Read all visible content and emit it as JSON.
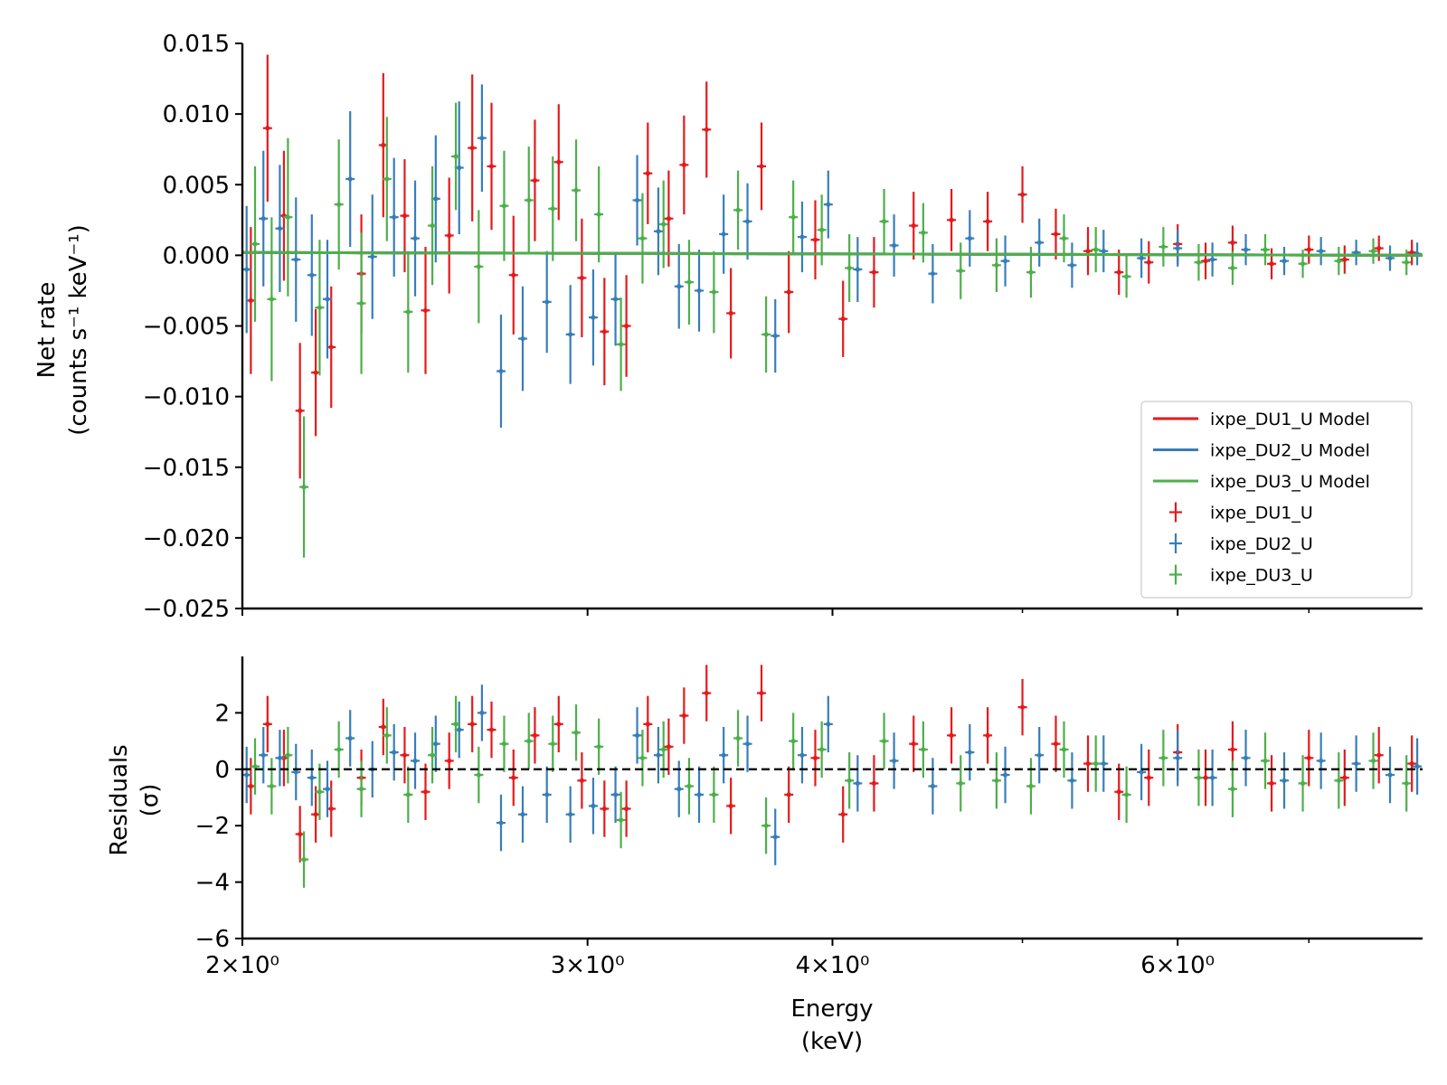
{
  "colors": {
    "du1": "#e41a1c",
    "du2": "#377eb8",
    "du3": "#4daf4a",
    "axis": "#000000"
  },
  "chart_data": [
    {
      "type": "scatter",
      "panel": "top",
      "title": "",
      "xlabel": "",
      "ylabel_line1": "Net rate",
      "ylabel_line2": "(counts s⁻¹ keV⁻¹)",
      "xscale": "log",
      "xlim": [
        2.0,
        8.0
      ],
      "ylim": [
        -0.025,
        0.015
      ],
      "yticks": [
        -0.025,
        -0.02,
        -0.015,
        -0.01,
        -0.005,
        0.0,
        0.005,
        0.01,
        0.015
      ],
      "ytick_labels": [
        "−0.025",
        "−0.020",
        "−0.015",
        "−0.010",
        "−0.005",
        "0.000",
        "0.005",
        "0.010",
        "0.015"
      ],
      "legend": {
        "position": "lower-right",
        "entries": [
          {
            "label": "ixpe_DU1_U Model",
            "style": "line",
            "color_key": "du1"
          },
          {
            "label": "ixpe_DU2_U Model",
            "style": "line",
            "color_key": "du2"
          },
          {
            "label": "ixpe_DU3_U Model",
            "style": "line",
            "color_key": "du3"
          },
          {
            "label": "ixpe_DU1_U",
            "style": "errorbar",
            "color_key": "du1"
          },
          {
            "label": "ixpe_DU2_U",
            "style": "errorbar",
            "color_key": "du2"
          },
          {
            "label": "ixpe_DU3_U",
            "style": "errorbar",
            "color_key": "du3"
          }
        ]
      },
      "models": [
        {
          "name": "ixpe_DU1_U Model",
          "color_key": "du1",
          "x": [
            2.0,
            4.0,
            8.0
          ],
          "y": [
            0.0002,
            0.0001,
            0.0
          ]
        },
        {
          "name": "ixpe_DU2_U Model",
          "color_key": "du2",
          "x": [
            2.0,
            4.0,
            8.0
          ],
          "y": [
            0.0002,
            0.0001,
            0.0
          ]
        },
        {
          "name": "ixpe_DU3_U Model",
          "color_key": "du3",
          "x": [
            2.0,
            4.0,
            8.0
          ],
          "y": [
            0.0002,
            0.0001,
            0.0
          ]
        }
      ],
      "series": [
        {
          "name": "ixpe_DU1_U",
          "color_key": "du1",
          "x": [
            2.02,
            2.06,
            2.1,
            2.14,
            2.18,
            2.22,
            2.3,
            2.36,
            2.42,
            2.48,
            2.55,
            2.62,
            2.68,
            2.75,
            2.82,
            2.9,
            2.98,
            3.06,
            3.14,
            3.22,
            3.3,
            3.36,
            3.45,
            3.55,
            3.68,
            3.8,
            3.92,
            4.05,
            4.2,
            4.4,
            4.6,
            4.8,
            5.0,
            5.2,
            5.4,
            5.6,
            5.8,
            6.0,
            6.2,
            6.4,
            6.7,
            7.0,
            7.3,
            7.6,
            7.9
          ],
          "y": [
            -0.0032,
            0.009,
            0.0028,
            -0.011,
            -0.0083,
            -0.0065,
            -0.0013,
            0.0078,
            0.0028,
            -0.0039,
            0.0014,
            0.0076,
            0.0063,
            -0.0014,
            0.0053,
            0.0066,
            -0.0016,
            -0.0054,
            -0.005,
            0.0058,
            0.0026,
            0.0064,
            0.0089,
            -0.0041,
            0.0063,
            -0.0026,
            0.0011,
            -0.0045,
            -0.0012,
            0.0021,
            0.0025,
            0.0024,
            0.0043,
            0.0015,
            0.0003,
            -0.0012,
            -0.0005,
            0.0008,
            -0.0004,
            0.0009,
            -0.0006,
            0.0004,
            -0.0003,
            0.0005,
            0.0002
          ],
          "err": [
            0.0052,
            0.0052,
            0.0046,
            0.0048,
            0.0045,
            0.0043,
            0.0042,
            0.0051,
            0.004,
            0.0045,
            0.0041,
            0.0052,
            0.0045,
            0.0042,
            0.0043,
            0.0041,
            0.0042,
            0.0038,
            0.0036,
            0.0036,
            0.0034,
            0.0035,
            0.0034,
            0.0032,
            0.0031,
            0.0029,
            0.0028,
            0.0027,
            0.0025,
            0.0024,
            0.0022,
            0.0021,
            0.002,
            0.0018,
            0.0017,
            0.0016,
            0.0015,
            0.0014,
            0.0013,
            0.0012,
            0.0011,
            0.001,
            0.001,
            0.0009,
            0.0009
          ]
        },
        {
          "name": "ixpe_DU2_U",
          "color_key": "du2",
          "x": [
            2.01,
            2.05,
            2.09,
            2.13,
            2.17,
            2.21,
            2.27,
            2.33,
            2.39,
            2.45,
            2.51,
            2.58,
            2.65,
            2.71,
            2.78,
            2.86,
            2.94,
            3.02,
            3.1,
            3.18,
            3.26,
            3.34,
            3.42,
            3.52,
            3.62,
            3.74,
            3.86,
            3.98,
            4.12,
            4.3,
            4.5,
            4.7,
            4.9,
            5.1,
            5.3,
            5.5,
            5.75,
            6.0,
            6.25,
            6.5,
            6.8,
            7.1,
            7.4,
            7.7,
            7.95
          ],
          "y": [
            -0.001,
            0.0026,
            0.0019,
            -0.0003,
            -0.0014,
            -0.0031,
            0.0054,
            -0.0001,
            0.0027,
            0.0012,
            0.004,
            0.0062,
            0.0083,
            -0.0082,
            -0.0059,
            -0.0033,
            -0.0056,
            -0.0044,
            -0.0031,
            0.0039,
            0.0017,
            -0.0022,
            -0.0025,
            0.0015,
            0.0024,
            -0.0057,
            0.0013,
            0.0036,
            -0.001,
            0.0007,
            -0.0013,
            0.0012,
            -0.0004,
            0.0009,
            -0.0007,
            0.0003,
            -0.0002,
            0.0005,
            -0.0003,
            0.0004,
            -0.0004,
            0.0003,
            0.0002,
            -0.0002,
            0.0001
          ],
          "err": [
            0.0045,
            0.0048,
            0.0045,
            0.0044,
            0.0043,
            0.0042,
            0.0048,
            0.0044,
            0.0042,
            0.0041,
            0.0045,
            0.0047,
            0.0038,
            0.004,
            0.0037,
            0.0036,
            0.0035,
            0.0034,
            0.0033,
            0.0032,
            0.0031,
            0.003,
            0.0029,
            0.0028,
            0.0027,
            0.0026,
            0.0025,
            0.0024,
            0.0023,
            0.0022,
            0.0021,
            0.002,
            0.0018,
            0.0017,
            0.0016,
            0.0015,
            0.0014,
            0.0013,
            0.0012,
            0.0011,
            0.001,
            0.001,
            0.0009,
            0.0009,
            0.0008
          ]
        },
        {
          "name": "ixpe_DU3_U",
          "color_key": "du3",
          "x": [
            2.03,
            2.07,
            2.11,
            2.15,
            2.19,
            2.24,
            2.3,
            2.37,
            2.43,
            2.5,
            2.57,
            2.64,
            2.72,
            2.8,
            2.88,
            2.96,
            3.04,
            3.12,
            3.2,
            3.28,
            3.38,
            3.48,
            3.58,
            3.7,
            3.82,
            3.95,
            4.08,
            4.25,
            4.45,
            4.65,
            4.85,
            5.05,
            5.25,
            5.45,
            5.65,
            5.9,
            6.15,
            6.4,
            6.65,
            6.95,
            7.25,
            7.55,
            7.85
          ],
          "y": [
            0.0008,
            -0.0031,
            0.0027,
            -0.0164,
            -0.0037,
            0.0036,
            -0.0034,
            0.0054,
            -0.004,
            0.0021,
            0.007,
            -0.0008,
            0.0035,
            0.0039,
            0.0033,
            0.0046,
            0.0029,
            -0.0063,
            0.0012,
            0.0022,
            -0.0019,
            -0.0026,
            0.0032,
            -0.0056,
            0.0027,
            0.0018,
            -0.0009,
            0.0024,
            0.0016,
            -0.0011,
            -0.0007,
            -0.0012,
            0.0012,
            0.0004,
            -0.0015,
            0.0006,
            -0.0005,
            -0.0009,
            0.0004,
            -0.0006,
            -0.0004,
            0.0003,
            -0.0005
          ],
          "err": [
            0.0055,
            0.0058,
            0.0056,
            0.005,
            0.0048,
            0.0046,
            0.005,
            0.0044,
            0.0043,
            0.0042,
            0.0038,
            0.004,
            0.0039,
            0.0038,
            0.0037,
            0.0036,
            0.0034,
            0.0033,
            0.0032,
            0.0031,
            0.003,
            0.0029,
            0.0028,
            0.0027,
            0.0026,
            0.0025,
            0.0024,
            0.0023,
            0.0021,
            0.002,
            0.0019,
            0.0018,
            0.0017,
            0.0016,
            0.0015,
            0.0014,
            0.0013,
            0.0012,
            0.0011,
            0.001,
            0.001,
            0.0009,
            0.0009
          ]
        }
      ]
    },
    {
      "type": "scatter",
      "panel": "bottom",
      "title": "",
      "xlabel_line1": "Energy",
      "xlabel_line2": "(keV)",
      "ylabel_line1": "Residuals",
      "ylabel_line2": "(σ)",
      "xscale": "log",
      "xlim": [
        2.0,
        8.0
      ],
      "xticks": [
        2,
        3,
        4,
        6
      ],
      "xtick_labels": [
        "2×10⁰",
        "3×10⁰",
        "4×10⁰",
        "6×10⁰"
      ],
      "xminor_ticks": [
        5,
        7
      ],
      "ylim": [
        -6,
        4
      ],
      "yticks": [
        -6,
        -4,
        -2,
        0,
        2
      ],
      "ytick_labels": [
        "−6",
        "−4",
        "−2",
        "0",
        "2"
      ],
      "zero_line": {
        "y": 0,
        "style": "dashed",
        "color_key": "axis"
      },
      "series": [
        {
          "name": "ixpe_DU1_U",
          "color_key": "du1",
          "x": [
            2.02,
            2.06,
            2.1,
            2.14,
            2.18,
            2.22,
            2.3,
            2.36,
            2.42,
            2.48,
            2.55,
            2.62,
            2.68,
            2.75,
            2.82,
            2.9,
            2.98,
            3.06,
            3.14,
            3.22,
            3.3,
            3.36,
            3.45,
            3.55,
            3.68,
            3.8,
            3.92,
            4.05,
            4.2,
            4.4,
            4.6,
            4.8,
            5.0,
            5.2,
            5.4,
            5.6,
            5.8,
            6.0,
            6.2,
            6.4,
            6.7,
            7.0,
            7.3,
            7.6,
            7.9
          ],
          "y": [
            -0.6,
            1.6,
            0.4,
            -2.3,
            -1.6,
            -1.4,
            -0.3,
            1.5,
            0.5,
            -0.8,
            0.3,
            1.6,
            1.4,
            -0.3,
            1.2,
            1.6,
            -0.4,
            -1.4,
            -1.4,
            1.6,
            0.8,
            1.9,
            2.7,
            -1.3,
            2.7,
            -0.9,
            0.4,
            -1.6,
            -0.5,
            0.9,
            1.2,
            1.2,
            2.2,
            0.9,
            0.2,
            -0.8,
            -0.3,
            0.6,
            -0.3,
            0.7,
            -0.5,
            0.4,
            -0.3,
            0.5,
            0.2
          ],
          "err": [
            1,
            1,
            1,
            1,
            1,
            1,
            1,
            1,
            1,
            1,
            1,
            1,
            1,
            1,
            1,
            1,
            1,
            1,
            1,
            1,
            1,
            1,
            1,
            1,
            1,
            1,
            1,
            1,
            1,
            1,
            1,
            1,
            1,
            1,
            1,
            1,
            1,
            1,
            1,
            1,
            1,
            1,
            1,
            1,
            1
          ]
        },
        {
          "name": "ixpe_DU2_U",
          "color_key": "du2",
          "x": [
            2.01,
            2.05,
            2.09,
            2.13,
            2.17,
            2.21,
            2.27,
            2.33,
            2.39,
            2.45,
            2.51,
            2.58,
            2.65,
            2.71,
            2.78,
            2.86,
            2.94,
            3.02,
            3.1,
            3.18,
            3.26,
            3.34,
            3.42,
            3.52,
            3.62,
            3.74,
            3.86,
            3.98,
            4.12,
            4.3,
            4.5,
            4.7,
            4.9,
            5.1,
            5.3,
            5.5,
            5.75,
            6.0,
            6.25,
            6.5,
            6.8,
            7.1,
            7.4,
            7.7,
            7.95
          ],
          "y": [
            -0.2,
            0.5,
            0.4,
            -0.1,
            -0.3,
            -0.7,
            1.1,
            0.0,
            0.6,
            0.3,
            0.9,
            1.4,
            2.0,
            -1.9,
            -1.6,
            -0.9,
            -1.6,
            -1.3,
            -0.9,
            1.2,
            0.5,
            -0.7,
            -0.9,
            0.5,
            0.9,
            -2.4,
            0.5,
            1.6,
            -0.5,
            0.3,
            -0.6,
            0.6,
            -0.2,
            0.5,
            -0.4,
            0.2,
            -0.1,
            0.4,
            -0.3,
            0.4,
            -0.4,
            0.3,
            0.2,
            -0.2,
            0.1
          ],
          "err": [
            1,
            1,
            1,
            1,
            1,
            1,
            1,
            1,
            1,
            1,
            1,
            1,
            1,
            1,
            1,
            1,
            1,
            1,
            1,
            1,
            1,
            1,
            1,
            1,
            1,
            1,
            1,
            1,
            1,
            1,
            1,
            1,
            1,
            1,
            1,
            1,
            1,
            1,
            1,
            1,
            1,
            1,
            1,
            1,
            1
          ]
        },
        {
          "name": "ixpe_DU3_U",
          "color_key": "du3",
          "x": [
            2.03,
            2.07,
            2.11,
            2.15,
            2.19,
            2.24,
            2.3,
            2.37,
            2.43,
            2.5,
            2.57,
            2.64,
            2.72,
            2.8,
            2.88,
            2.96,
            3.04,
            3.12,
            3.2,
            3.28,
            3.38,
            3.48,
            3.58,
            3.7,
            3.82,
            3.95,
            4.08,
            4.25,
            4.45,
            4.65,
            4.85,
            5.05,
            5.25,
            5.45,
            5.65,
            5.9,
            6.15,
            6.4,
            6.65,
            6.95,
            7.25,
            7.55,
            7.85
          ],
          "y": [
            0.1,
            -0.6,
            0.5,
            -3.2,
            -0.8,
            0.7,
            -0.7,
            1.2,
            -0.9,
            0.5,
            1.6,
            -0.2,
            0.9,
            1.0,
            0.9,
            1.3,
            0.8,
            -1.8,
            0.4,
            0.7,
            -0.6,
            -0.9,
            1.1,
            -2.0,
            1.0,
            0.7,
            -0.4,
            1.0,
            0.7,
            -0.5,
            -0.4,
            -0.6,
            0.7,
            0.2,
            -0.9,
            0.4,
            -0.3,
            -0.7,
            0.3,
            -0.5,
            -0.4,
            0.3,
            -0.5
          ],
          "err": [
            1,
            1,
            1,
            1,
            1,
            1,
            1,
            1,
            1,
            1,
            1,
            1,
            1,
            1,
            1,
            1,
            1,
            1,
            1,
            1,
            1,
            1,
            1,
            1,
            1,
            1,
            1,
            1,
            1,
            1,
            1,
            1,
            1,
            1,
            1,
            1,
            1,
            1,
            1,
            1,
            1,
            1,
            1
          ]
        }
      ]
    }
  ]
}
